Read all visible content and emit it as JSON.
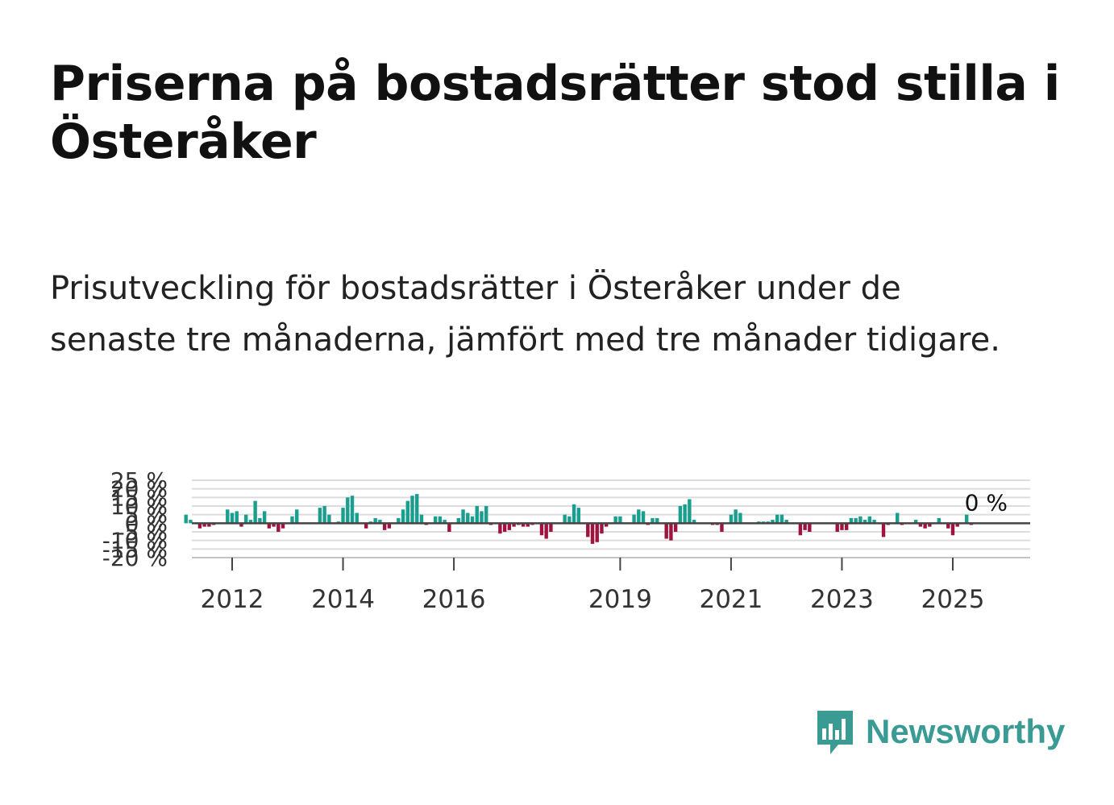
{
  "header": {
    "title": "Priserna på bostadsrätter stod stilla i Österåker",
    "subtitle": "Prisutveckling för bostadsrätter i Österåker under de senaste tre månaderna, jämfört med tre månader tidigare."
  },
  "colors": {
    "positive": "#1a9e8f",
    "negative": "#a0133f",
    "grid": "#dcdcdc",
    "zero_line": "#444444",
    "brand": "#3a9a94"
  },
  "brand": {
    "name": "Newsworthy",
    "icon": "newsworthy-logo-icon"
  },
  "chart_data": {
    "type": "bar",
    "title": "Priserna på bostadsrätter stod stilla i Österåker",
    "xlabel": "",
    "ylabel": "",
    "ylim": [
      -20,
      25
    ],
    "y_ticks": [
      25,
      20,
      15,
      10,
      5,
      0,
      -5,
      -10,
      -15,
      -20
    ],
    "y_tick_labels": [
      "25 %",
      "20 %",
      "15 %",
      "10 %",
      "5 %",
      "0 %",
      "-5 %",
      "-10 %",
      "-15 %",
      "-20 %"
    ],
    "x_ticks": [
      "2012",
      "2014",
      "2016",
      "2019",
      "2021",
      "2023",
      "2025"
    ],
    "x_start": "2011-03",
    "last_value_label": "0 %",
    "values": [
      5,
      2,
      0,
      -3,
      -2,
      -2,
      -1,
      0,
      0,
      8,
      6,
      7,
      -2,
      5,
      2,
      13,
      3,
      7,
      -3,
      -2,
      -5,
      -3,
      0,
      4,
      8,
      0,
      0,
      0,
      0,
      9,
      10,
      5,
      0,
      1,
      9,
      15,
      16,
      6,
      0,
      -3,
      1,
      3,
      2,
      -4,
      -3,
      0,
      3,
      8,
      13,
      16,
      17,
      5,
      -1,
      0,
      4,
      4,
      2,
      -5,
      0,
      3,
      8,
      6,
      4,
      10,
      7,
      10,
      -1,
      0,
      -6,
      -5,
      -4,
      -2,
      -1,
      -2,
      -2,
      -1,
      0,
      -7,
      -9,
      -5,
      0,
      0,
      5,
      4,
      11,
      9,
      0,
      -8,
      -12,
      -11,
      -6,
      -2,
      0,
      4,
      4,
      0,
      0,
      5,
      8,
      7,
      -1,
      3,
      3,
      0,
      -9,
      -10,
      -5,
      10,
      11,
      14,
      2,
      0,
      0,
      0,
      -1,
      -1,
      -5,
      0,
      5,
      8,
      6,
      0,
      0,
      0,
      1,
      1,
      1,
      2,
      5,
      5,
      2,
      0,
      0,
      -7,
      -4,
      -5,
      0,
      0,
      0,
      0,
      0,
      -5,
      -4,
      -4,
      3,
      3,
      4,
      2,
      4,
      2,
      0,
      -8,
      -1,
      0,
      6,
      -1,
      0,
      0,
      2,
      -2,
      -3,
      -2,
      0,
      3,
      0,
      -3,
      -7,
      -2,
      0,
      5,
      -1,
      0
    ]
  }
}
